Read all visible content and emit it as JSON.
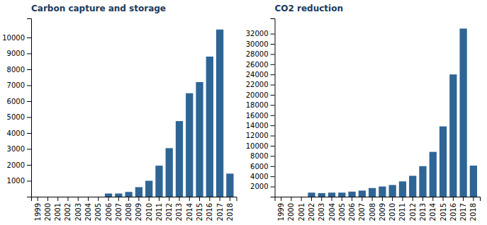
{
  "chart_data": [
    {
      "type": "bar",
      "title": "Carbon capture and storage",
      "categories": [
        "1999",
        "2000",
        "2001",
        "2002",
        "2003",
        "2004",
        "2005",
        "2006",
        "2007",
        "2008",
        "2009",
        "2010",
        "2011",
        "2012",
        "2013",
        "2014",
        "2015",
        "2016",
        "2017",
        "2018"
      ],
      "values": [
        0,
        0,
        0,
        0,
        0,
        0,
        0,
        200,
        200,
        300,
        600,
        1000,
        1950,
        3050,
        4750,
        6500,
        7200,
        8800,
        10500,
        1450
      ],
      "color": "#2e6595",
      "ylim": [
        0,
        11200
      ],
      "yticks": [
        1000,
        2000,
        3000,
        4000,
        5000,
        6000,
        7000,
        8000,
        9000,
        10000
      ],
      "grid": false
    },
    {
      "type": "bar",
      "title": "CO2 reduction",
      "categories": [
        "1999",
        "2000",
        "2001",
        "2002",
        "2003",
        "2004",
        "2005",
        "2006",
        "2007",
        "2008",
        "2009",
        "2010",
        "2011",
        "2012",
        "2013",
        "2014",
        "2015",
        "2016",
        "2017",
        "2018"
      ],
      "values": [
        0,
        0,
        0,
        800,
        700,
        800,
        800,
        1000,
        1200,
        1700,
        2000,
        2300,
        3000,
        4100,
        6000,
        8800,
        13800,
        24000,
        33000,
        6100
      ],
      "color": "#2e6595",
      "ylim": [
        0,
        35000
      ],
      "yticks": [
        2000,
        4000,
        6000,
        8000,
        10000,
        12000,
        14000,
        16000,
        18000,
        20000,
        22000,
        24000,
        26000,
        28000,
        30000,
        32000
      ],
      "grid": false
    }
  ]
}
